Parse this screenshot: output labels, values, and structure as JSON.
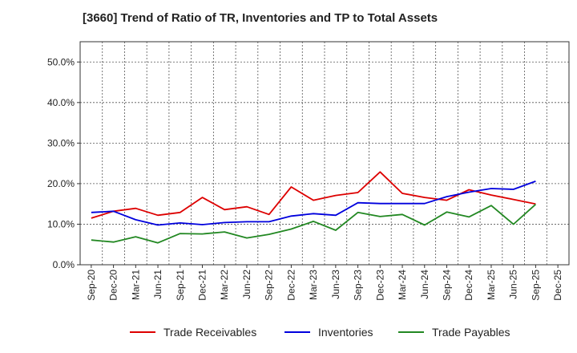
{
  "chart_data": {
    "type": "line",
    "title": "[3660]  Trend of Ratio of TR, Inventories and TP to Total Assets",
    "xlabel": "",
    "ylabel": "",
    "ylim": [
      0,
      55
    ],
    "yticks": [
      0,
      10,
      20,
      30,
      40,
      50
    ],
    "ytick_labels": [
      "0.0%",
      "10.0%",
      "20.0%",
      "30.0%",
      "40.0%",
      "50.0%"
    ],
    "x": [
      "Sep-20",
      "Dec-20",
      "Mar-21",
      "Jun-21",
      "Sep-21",
      "Dec-21",
      "Mar-22",
      "Jun-22",
      "Sep-22",
      "Dec-22",
      "Mar-23",
      "Jun-23",
      "Sep-23",
      "Dec-23",
      "Mar-24",
      "Jun-24",
      "Sep-24",
      "Dec-24",
      "Mar-25",
      "Jun-25",
      "Sep-25",
      "Dec-25"
    ],
    "grid": true,
    "legend_position": "bottom",
    "series": [
      {
        "name": "Trade Receivables",
        "color": "#dd0000",
        "values": [
          11.5,
          13.2,
          13.9,
          12.2,
          12.9,
          16.6,
          13.6,
          14.3,
          12.4,
          19.2,
          15.9,
          17.1,
          17.8,
          22.9,
          17.6,
          16.6,
          15.9,
          18.5,
          17.2,
          16.1,
          15.0,
          null
        ]
      },
      {
        "name": "Inventories",
        "color": "#0000dd",
        "values": [
          12.9,
          13.2,
          11.1,
          9.8,
          10.3,
          9.9,
          10.4,
          10.6,
          10.6,
          12.0,
          12.6,
          12.2,
          15.3,
          15.1,
          15.1,
          15.1,
          16.8,
          17.9,
          18.8,
          18.6,
          20.6,
          null
        ]
      },
      {
        "name": "Trade Payables",
        "color": "#228822",
        "values": [
          6.1,
          5.6,
          6.9,
          5.4,
          7.7,
          7.6,
          8.1,
          6.6,
          7.5,
          8.8,
          10.7,
          8.5,
          12.9,
          11.9,
          12.4,
          9.8,
          13.0,
          11.8,
          14.6,
          10.0,
          14.9,
          null
        ]
      }
    ]
  }
}
